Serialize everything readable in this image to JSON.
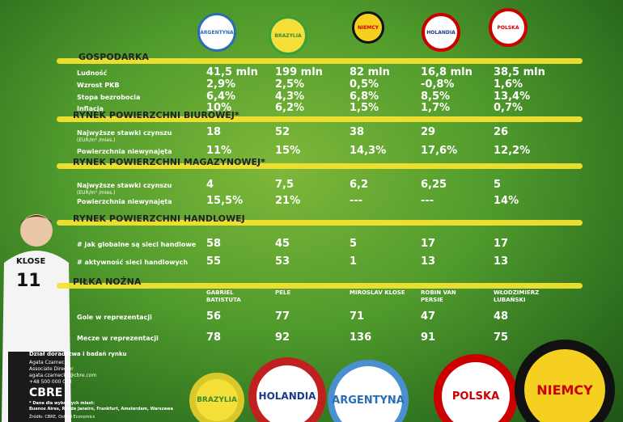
{
  "countries": [
    "ARGENTYNA",
    "BRAZYLIA",
    "NIEMCY",
    "HOLANDIA",
    "POLSKA"
  ],
  "sections": [
    {
      "title": "GOSPODARKA",
      "rows": [
        {
          "label": "Ludność",
          "values": [
            "41,5 mln",
            "199 mln",
            "82 mln",
            "16,8 mln",
            "38,5 mln"
          ]
        },
        {
          "label": "Wzrost PKB",
          "values": [
            "2,9%",
            "2,5%",
            "0,5%",
            "-0,8%",
            "1,6%"
          ]
        },
        {
          "label": "Stopa bezrobocia",
          "values": [
            "6,4%",
            "4,3%",
            "6,8%",
            "8,5%",
            "13,4%"
          ]
        },
        {
          "label": "Inflacja",
          "values": [
            "10%",
            "6,2%",
            "1,5%",
            "1,7%",
            "0,7%"
          ]
        }
      ]
    },
    {
      "title": "RYNEK POWIERZCHNI BIUROWEJ*",
      "rows": [
        {
          "label": "Najwyższe stawki czynszu",
          "sublabel": "(EUR/m² /mies.)",
          "values": [
            "18",
            "52",
            "38",
            "29",
            "26"
          ]
        },
        {
          "label": "Powierzchnia niewynajęta",
          "values": [
            "11%",
            "15%",
            "14,3%",
            "17,6%",
            "12,2%"
          ]
        }
      ]
    },
    {
      "title": "RYNEK POWIERZCHNI MAGAZYNOWEJ*",
      "rows": [
        {
          "label": "Najwyższe stawki czynszu",
          "sublabel": "(EUR/m² /mies.)",
          "values": [
            "4",
            "7,5",
            "6,2",
            "6,25",
            "5"
          ]
        },
        {
          "label": "Powierzchnia niewynajęta",
          "values": [
            "15,5%",
            "21%",
            "---",
            "---",
            "14%"
          ]
        }
      ]
    },
    {
      "title": "RYNEK POWIERZCHNI HANDLOWEJ",
      "rows": [
        {
          "label": "# jak globalne są sieci handlowe",
          "values": [
            "58",
            "45",
            "5",
            "17",
            "17"
          ]
        },
        {
          "label": "# aktywność sieci handlowych",
          "values": [
            "55",
            "53",
            "1",
            "13",
            "13"
          ]
        }
      ]
    },
    {
      "title": "PIŁKA NOŻNA",
      "players": [
        "GABRIEL BATISTUTA",
        "PELE",
        "MIROSLAV KLOSE",
        "ROBIN VAN PERSIE",
        "WŁODZIMIERZ LUBAŃSKI"
      ],
      "rows": [
        {
          "label": "Gole w reprezentacji",
          "values": [
            "56",
            "77",
            "71",
            "47",
            "48"
          ]
        },
        {
          "label": "Mecze w reprezentacji",
          "values": [
            "78",
            "92",
            "136",
            "91",
            "75"
          ]
        }
      ]
    }
  ],
  "player": {
    "name": "KLOSE",
    "number": "11"
  },
  "footer": {
    "lines": [
      "Dział doradztwa i badań rynku",
      "Agata Czarnecka",
      "Associate Director",
      "agata.czarnecka@cbre.com",
      "+48 500 000 053"
    ],
    "logo": "CBRE",
    "note": "* Dane dla wybranych miast:",
    "cities": "Buenos Aires, Rio de Janeiro, Frankfurt, Amsterdam, Warszawa",
    "source": "Źródło: CBRE, Oxford Economics"
  }
}
